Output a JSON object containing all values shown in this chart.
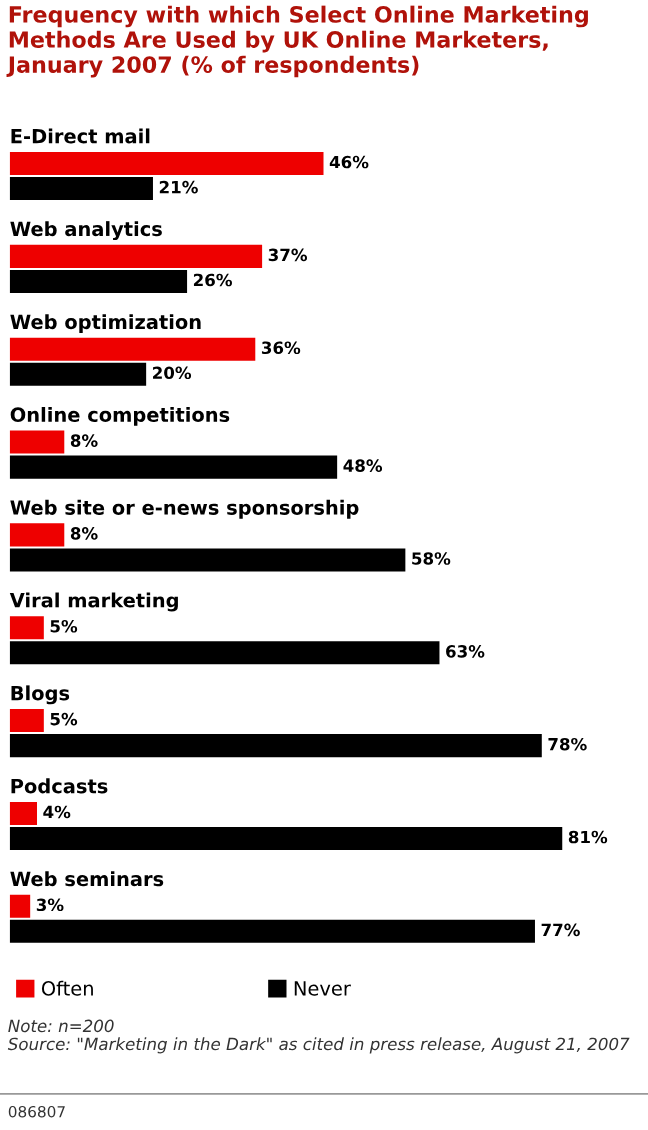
{
  "chart_data": {
    "type": "bar",
    "orientation": "horizontal",
    "title": "Frequency with which Select Online Marketing Methods Are Used by UK Online Marketers, January 2007 (% of respondents)",
    "categories": [
      "E-Direct mail",
      "Web analytics",
      "Web optimization",
      "Online competitions",
      "Web site or e-news sponsorship",
      "Viral marketing",
      "Blogs",
      "Podcasts",
      "Web seminars"
    ],
    "series": [
      {
        "name": "Often",
        "color": "#ee0000",
        "values": [
          46,
          37,
          36,
          8,
          8,
          5,
          5,
          4,
          3
        ],
        "value_labels": [
          "46%",
          "37%",
          "36%",
          "8%",
          "8%",
          "5%",
          "5%",
          "4%",
          "3%"
        ]
      },
      {
        "name": "Never",
        "color": "#000000",
        "values": [
          21,
          26,
          20,
          48,
          58,
          63,
          78,
          81,
          77
        ],
        "value_labels": [
          "21%",
          "26%",
          "20%",
          "48%",
          "58%",
          "63%",
          "78%",
          "81%",
          "77%"
        ]
      }
    ],
    "legend": "bottom left",
    "annotations": [
      "Note: n=200",
      "Source: \"Marketing in the Dark\" as cited in press release, August 21, 2007",
      "086807"
    ]
  }
}
